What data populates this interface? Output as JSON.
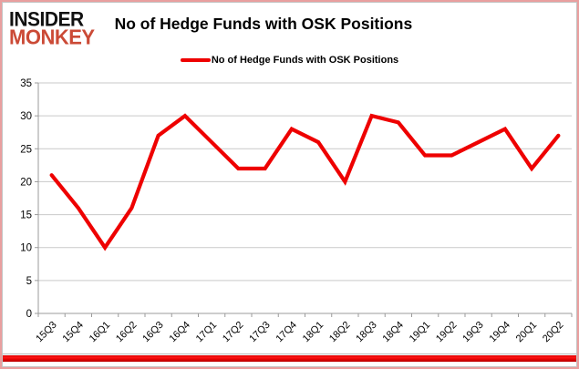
{
  "header": {
    "logo_line1": "INSIDER",
    "logo_line2": "MONKEY",
    "title": "No of Hedge Funds with OSK Positions"
  },
  "legend": {
    "label": "No of Hedge Funds with OSK Positions"
  },
  "colors": {
    "line": "#ee0000",
    "logo_accent": "#cb4a36",
    "grid": "#c9c9c9",
    "axis": "#9b9b9b",
    "text": "#000000",
    "bottom_bar": "#e00000",
    "frame": "#e99f9f"
  },
  "chart_data": {
    "type": "line",
    "title": "No of Hedge Funds with OSK Positions",
    "categories": [
      "15Q3",
      "15Q4",
      "16Q1",
      "16Q2",
      "16Q3",
      "16Q4",
      "17Q1",
      "17Q2",
      "17Q3",
      "17Q4",
      "18Q1",
      "18Q2",
      "18Q3",
      "18Q4",
      "19Q1",
      "19Q2",
      "19Q3",
      "19Q4",
      "20Q1",
      "20Q2"
    ],
    "series": [
      {
        "name": "No of Hedge Funds with OSK Positions",
        "values": [
          21,
          16,
          10,
          16,
          27,
          30,
          26,
          22,
          22,
          28,
          26,
          20,
          30,
          29,
          24,
          24,
          26,
          28,
          22,
          27
        ]
      }
    ],
    "xlabel": "",
    "ylabel": "",
    "ylim": [
      0,
      35
    ],
    "ytick_interval": 5,
    "grid": true,
    "legend_position": "top"
  }
}
